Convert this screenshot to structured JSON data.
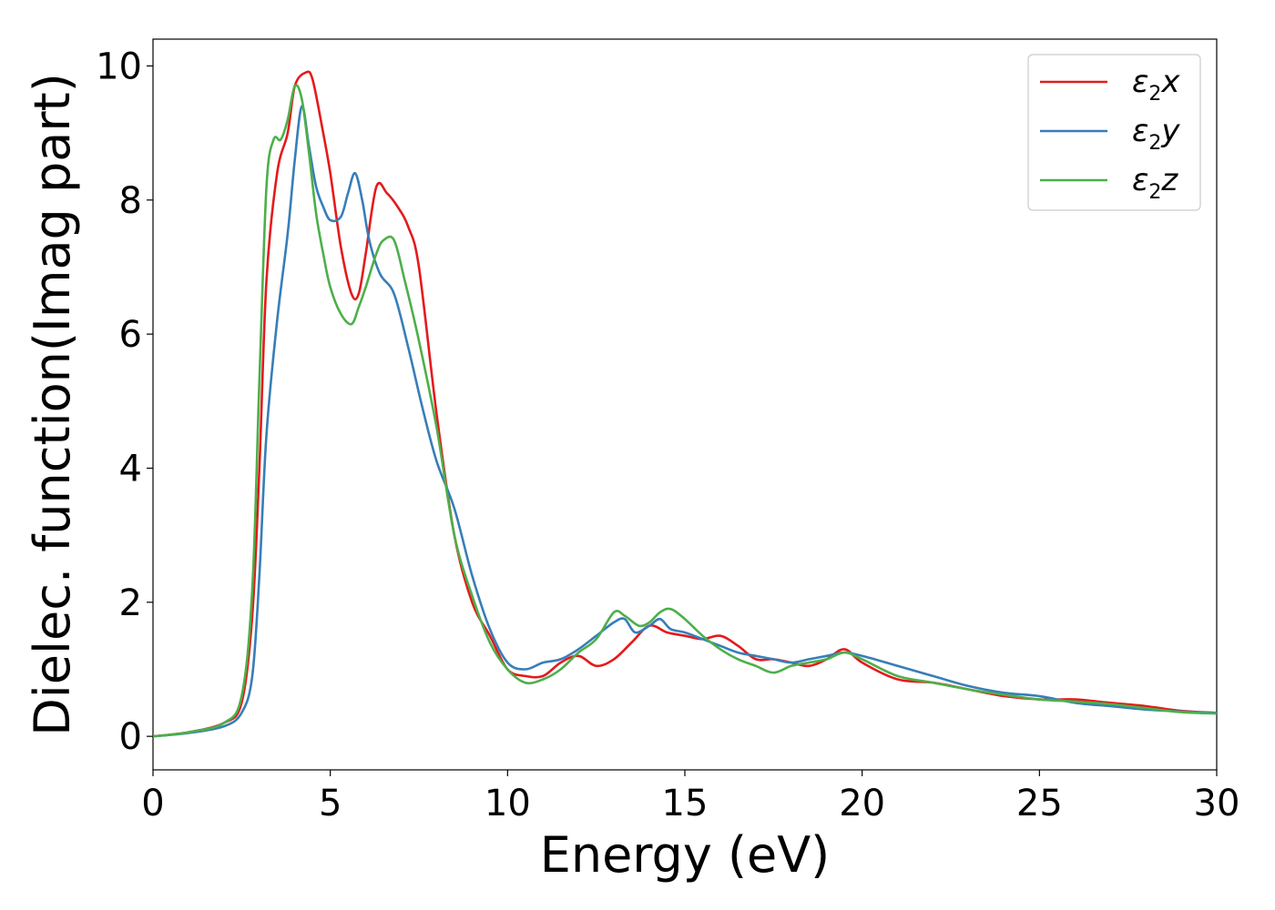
{
  "chart_data": {
    "type": "line",
    "xlabel": "Energy (eV)",
    "ylabel": "Dielec. function(Imag part)",
    "xlim": [
      0,
      30
    ],
    "ylim": [
      -0.5,
      10.4
    ],
    "xticks": [
      0,
      5,
      10,
      15,
      20,
      25,
      30
    ],
    "yticks": [
      0,
      2,
      4,
      6,
      8,
      10
    ],
    "grid": false,
    "legend_position": "top-right",
    "series": [
      {
        "name": "ε2x",
        "legend": {
          "symbol": "ε",
          "sub": "2",
          "var": "x"
        },
        "color": "#e41a1c",
        "x": [
          0,
          1,
          2,
          2.5,
          2.8,
          3,
          3.2,
          3.5,
          3.8,
          4,
          4.3,
          4.5,
          4.8,
          5,
          5.3,
          5.6,
          5.8,
          6,
          6.3,
          6.6,
          6.9,
          7.2,
          7.5,
          8,
          8.5,
          9,
          9.5,
          10,
          10.5,
          11,
          11.5,
          12,
          12.5,
          13,
          13.5,
          14,
          14.5,
          15,
          15.5,
          16,
          16.5,
          17,
          17.5,
          18,
          18.5,
          19,
          19.5,
          20,
          21,
          22,
          23,
          24,
          25,
          26,
          27,
          28,
          29,
          30
        ],
        "y": [
          0,
          0.06,
          0.2,
          0.5,
          1.8,
          4.0,
          6.8,
          8.4,
          9.0,
          9.7,
          9.9,
          9.8,
          9.0,
          8.4,
          7.3,
          6.6,
          6.6,
          7.2,
          8.2,
          8.1,
          7.9,
          7.6,
          7.0,
          4.8,
          3.0,
          2.0,
          1.5,
          1.0,
          0.9,
          0.9,
          1.1,
          1.2,
          1.05,
          1.15,
          1.4,
          1.65,
          1.55,
          1.5,
          1.45,
          1.5,
          1.35,
          1.15,
          1.15,
          1.1,
          1.05,
          1.15,
          1.3,
          1.1,
          0.85,
          0.8,
          0.7,
          0.6,
          0.55,
          0.55,
          0.5,
          0.45,
          0.38,
          0.35
        ]
      },
      {
        "name": "ε2y",
        "legend": {
          "symbol": "ε",
          "sub": "2",
          "var": "y"
        },
        "color": "#377eb8",
        "x": [
          0,
          1,
          2,
          2.5,
          2.8,
          3,
          3.2,
          3.5,
          3.8,
          4,
          4.2,
          4.4,
          4.6,
          4.8,
          5,
          5.3,
          5.5,
          5.7,
          5.9,
          6.1,
          6.4,
          6.8,
          7.2,
          7.6,
          8,
          8.5,
          9,
          9.5,
          10,
          10.5,
          11,
          11.5,
          12,
          12.5,
          13,
          13.3,
          13.6,
          14,
          14.3,
          14.6,
          15,
          15.5,
          16,
          16.5,
          17,
          17.5,
          18,
          18.5,
          19,
          19.5,
          20,
          21,
          22,
          23,
          24,
          25,
          26,
          27,
          28,
          29,
          30
        ],
        "y": [
          0,
          0.05,
          0.15,
          0.35,
          0.9,
          2.4,
          4.5,
          6.2,
          7.5,
          8.6,
          9.4,
          8.8,
          8.2,
          7.9,
          7.7,
          7.75,
          8.1,
          8.4,
          8.0,
          7.4,
          6.9,
          6.6,
          5.8,
          4.9,
          4.1,
          3.4,
          2.4,
          1.6,
          1.1,
          1.0,
          1.1,
          1.15,
          1.3,
          1.5,
          1.7,
          1.75,
          1.55,
          1.65,
          1.75,
          1.6,
          1.55,
          1.45,
          1.35,
          1.25,
          1.2,
          1.15,
          1.1,
          1.15,
          1.2,
          1.25,
          1.2,
          1.05,
          0.9,
          0.75,
          0.65,
          0.6,
          0.5,
          0.45,
          0.4,
          0.37,
          0.35
        ]
      },
      {
        "name": "ε2z",
        "legend": {
          "symbol": "ε",
          "sub": "2",
          "var": "z"
        },
        "color": "#4daf4a",
        "x": [
          0,
          1,
          2,
          2.5,
          2.8,
          3,
          3.2,
          3.4,
          3.6,
          3.8,
          4,
          4.2,
          4.4,
          4.6,
          4.8,
          5,
          5.3,
          5.6,
          5.8,
          6,
          6.3,
          6.5,
          6.8,
          7.1,
          7.5,
          8,
          8.5,
          9,
          9.5,
          10,
          10.5,
          11,
          11.5,
          12,
          12.5,
          13,
          13.3,
          13.7,
          14,
          14.3,
          14.6,
          15,
          15.5,
          16,
          16.5,
          17,
          17.5,
          18,
          18.5,
          19,
          19.5,
          20,
          21,
          22,
          23,
          24,
          25,
          26,
          27,
          28,
          29,
          30
        ],
        "y": [
          0,
          0.06,
          0.2,
          0.6,
          2.2,
          5.3,
          8.2,
          8.9,
          8.9,
          9.2,
          9.7,
          9.5,
          8.7,
          7.8,
          7.2,
          6.7,
          6.3,
          6.15,
          6.4,
          6.7,
          7.2,
          7.4,
          7.4,
          6.8,
          5.9,
          4.6,
          3.0,
          2.1,
          1.4,
          1.0,
          0.8,
          0.85,
          1.0,
          1.25,
          1.45,
          1.85,
          1.8,
          1.65,
          1.7,
          1.85,
          1.9,
          1.75,
          1.5,
          1.3,
          1.15,
          1.05,
          0.95,
          1.05,
          1.1,
          1.15,
          1.25,
          1.15,
          0.9,
          0.8,
          0.7,
          0.62,
          0.55,
          0.52,
          0.48,
          0.42,
          0.36,
          0.34
        ]
      }
    ]
  }
}
